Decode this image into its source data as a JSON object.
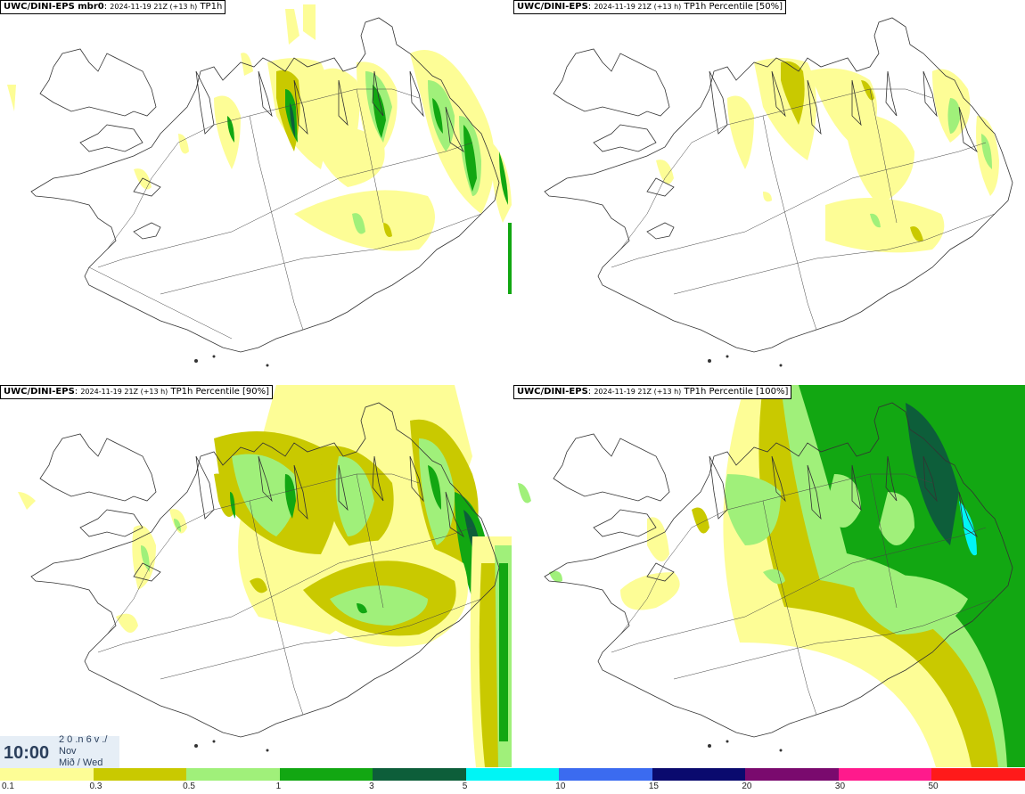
{
  "panels": [
    {
      "model": "UWC/DINI-EPS mbr0",
      "run": "2024-11-19 21Z (+13 h)",
      "field": "TP1h"
    },
    {
      "model": "UWC/DINI-EPS",
      "run": "2024-11-19 21Z (+13 h)",
      "field": "TP1h Percentile [50%]"
    },
    {
      "model": "UWC/DINI-EPS",
      "run": "2024-11-19 21Z (+13 h)",
      "field": "TP1h Percentile [90%]"
    },
    {
      "model": "UWC/DINI-EPS",
      "run": "2024-11-19 21Z (+13 h)",
      "field": "TP1h Percentile [100%]"
    }
  ],
  "clock": {
    "time": "10:00",
    "line1": "2 0 .n 6 v ./",
    "line2": "Nov",
    "line3": "Mið / Wed"
  },
  "colorbar": {
    "colors": [
      "#fdfd96",
      "#c9c900",
      "#a0f07a",
      "#12a712",
      "#0d5e3a",
      "#00f5f5",
      "#3b6bf0",
      "#0a0a6e",
      "#7a0a6e",
      "#ff1a8c",
      "#ff1a1a"
    ],
    "labels": [
      "0.1",
      "0.3",
      "0.5",
      "1",
      "3",
      "5",
      "10",
      "15",
      "20",
      "30",
      "50"
    ]
  },
  "legend_colors": {
    "light": "#fdfd96",
    "olive": "#c9c900",
    "lightgreen": "#a0f07a",
    "green": "#12a712",
    "dark": "#0d5e3a",
    "cyan": "#00f5f5"
  }
}
